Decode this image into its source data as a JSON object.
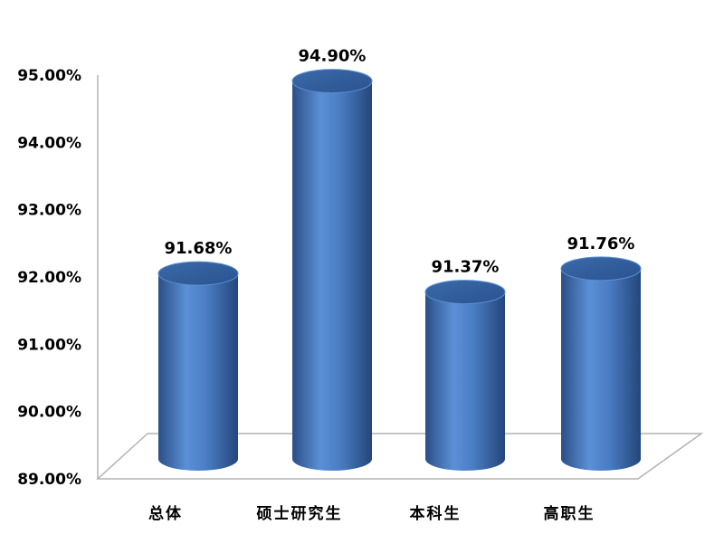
{
  "chart_data": {
    "type": "bar",
    "title": "",
    "xlabel": "",
    "ylabel": "",
    "categories": [
      "总体",
      "硕士研究生",
      "本科生",
      "高职生"
    ],
    "values": [
      91.68,
      94.9,
      91.37,
      91.76
    ],
    "data_labels": [
      "91.68%",
      "94.90%",
      "91.37%",
      "91.76%"
    ],
    "ylim": [
      89,
      95
    ],
    "yticks": [
      89,
      90,
      91,
      92,
      93,
      94,
      95
    ],
    "ytick_labels": [
      "89.00%",
      "90.00%",
      "91.00%",
      "92.00%",
      "93.00%",
      "94.00%",
      "95.00%"
    ],
    "grid": false,
    "legend": "none",
    "bar_color": "#4f81bd"
  }
}
